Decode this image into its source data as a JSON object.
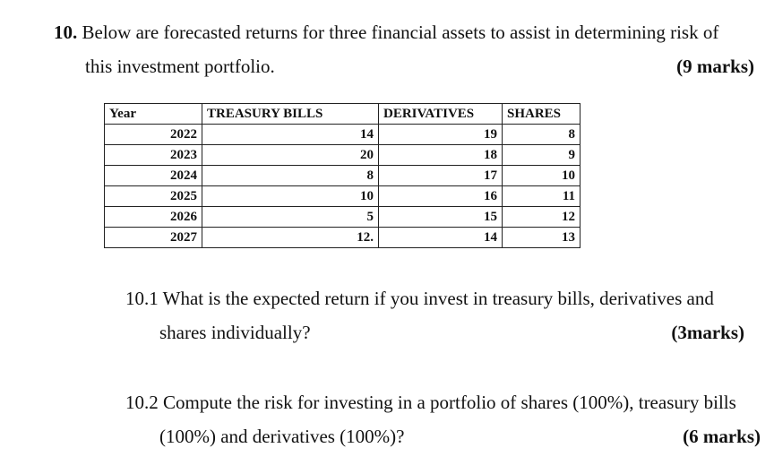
{
  "question": {
    "number": "10.",
    "text_line1": "Below are forecasted returns for three financial assets to assist in determining risk of",
    "text_line2": "this investment portfolio.",
    "marks": "(9 marks)"
  },
  "table": {
    "headers": [
      "Year",
      "TREASURY BILLS",
      "DERIVATIVES",
      "SHARES"
    ],
    "rows": [
      [
        "2022",
        "14",
        "19",
        "8"
      ],
      [
        "2023",
        "20",
        "18",
        "9"
      ],
      [
        "2024",
        "8",
        "17",
        "10"
      ],
      [
        "2025",
        "10",
        "16",
        "11"
      ],
      [
        "2026",
        "5",
        "15",
        "12"
      ],
      [
        "2027",
        "12.",
        "14",
        "13"
      ]
    ]
  },
  "sub1": {
    "text_line1": "10.1 What is the expected return if you invest in treasury bills, derivatives and",
    "text_line2": "shares individually?",
    "marks": "(3marks)"
  },
  "sub2": {
    "text_line1": "10.2 Compute the risk for investing in a portfolio of shares (100%), treasury bills",
    "text_line2": "(100%) and derivatives (100%)?",
    "marks": "(6 marks)"
  }
}
